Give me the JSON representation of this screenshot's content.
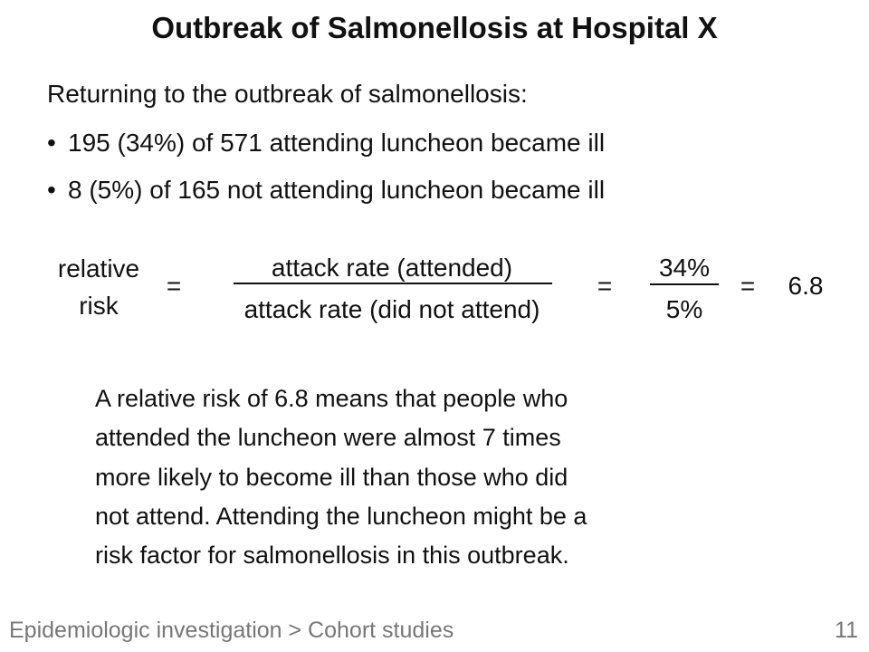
{
  "header": {
    "title": "Outbreak of Salmonellosis at Hospital X"
  },
  "intro": "Returning to the outbreak of salmonellosis:",
  "bullets": [
    "195 (34%) of 571 attending luncheon became ill",
    "8 (5%) of 165 not attending luncheon became ill"
  ],
  "formula": {
    "label_lines": [
      "relative",
      "risk"
    ],
    "equals": "=",
    "numerator": "attack rate (attended)",
    "denominator": "attack rate (did not attend)",
    "value_numerator": "34%",
    "value_denominator": "5%",
    "result": "6.8"
  },
  "paragraph": {
    "lines": [
      "A relative risk of 6.8 means that people who",
      "attended the luncheon were almost 7 times",
      "more likely to become ill than those who did",
      "not attend. Attending the luncheon might be a",
      "risk factor for salmonellosis in this outbreak."
    ]
  },
  "footer": {
    "section": "Epidemiologic investigation > Cohort studies",
    "page": "11"
  }
}
